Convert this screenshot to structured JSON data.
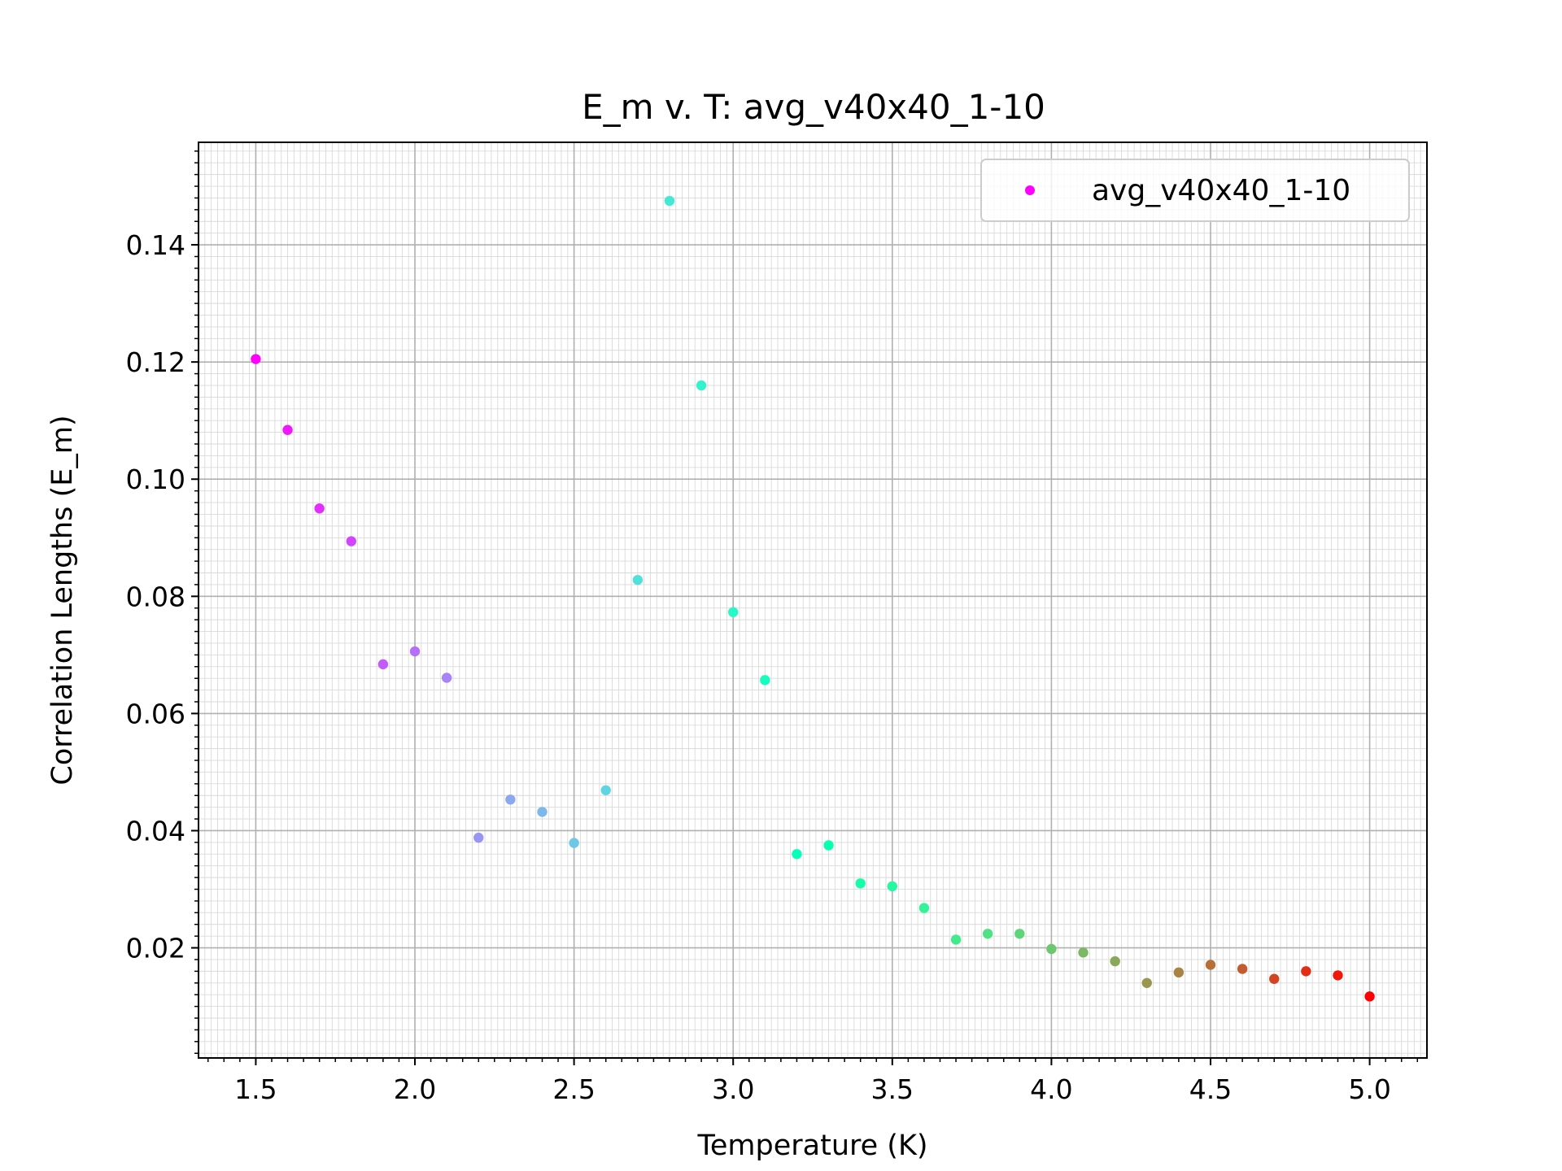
{
  "chart_data": {
    "type": "scatter",
    "title": "E_m v. T: avg_v40x40_1-10",
    "xlabel": "Temperature (K)",
    "ylabel": "Correlation Lengths (E_m)",
    "xlim": [
      1.32,
      5.18
    ],
    "ylim": [
      0.0012,
      0.1575
    ],
    "xticks": [
      "1.5",
      "2.0",
      "2.5",
      "3.0",
      "3.5",
      "4.0",
      "4.5",
      "5.0"
    ],
    "yticks": [
      "0.02",
      "0.04",
      "0.06",
      "0.08",
      "0.10",
      "0.12",
      "0.14"
    ],
    "grid": true,
    "minor_grid": true,
    "legend_position": "top-right",
    "colormap": "rainbow",
    "series": [
      {
        "name": "avg_v40x40_1-10",
        "x": [
          1.5,
          1.6,
          1.7,
          1.8,
          1.9,
          2.0,
          2.1,
          2.2,
          2.3,
          2.4,
          2.5,
          2.6,
          2.7,
          2.8,
          2.9,
          3.0,
          3.1,
          3.2,
          3.3,
          3.4,
          3.5,
          3.6,
          3.7,
          3.8,
          3.9,
          4.0,
          4.1,
          4.2,
          4.3,
          4.4,
          4.5,
          4.6,
          4.7,
          4.8,
          4.9,
          5.0
        ],
        "y": [
          0.1205,
          0.1084,
          0.095,
          0.0894,
          0.0684,
          0.0706,
          0.0661,
          0.0388,
          0.0453,
          0.0432,
          0.0379,
          0.0469,
          0.0828,
          0.1475,
          0.116,
          0.0773,
          0.0657,
          0.036,
          0.0375,
          0.031,
          0.0305,
          0.0268,
          0.0214,
          0.0224,
          0.0224,
          0.0198,
          0.0192,
          0.0177,
          0.014,
          0.0158,
          0.0171,
          0.0164,
          0.0147,
          0.016,
          0.0153,
          0.0117
        ]
      }
    ]
  }
}
